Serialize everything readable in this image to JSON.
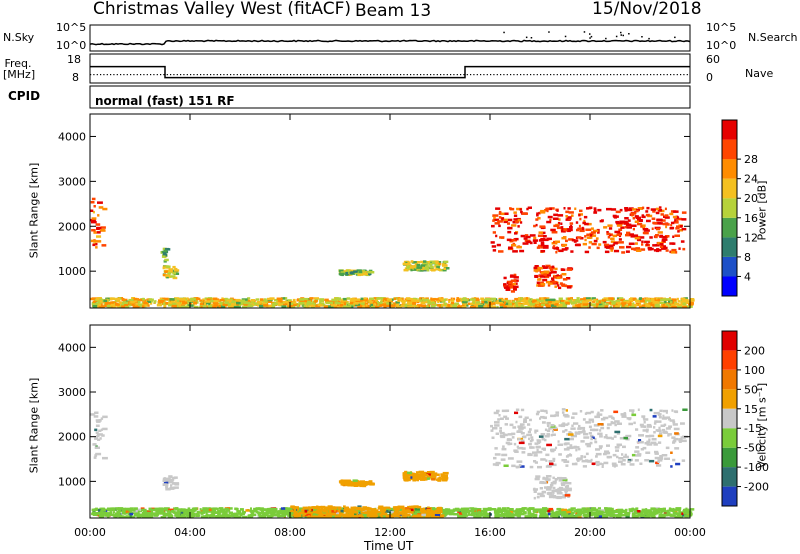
{
  "header": {
    "station": "Christmas Valley West (fitACF)",
    "beam": "Beam 13",
    "date": "15/Nov/2018"
  },
  "chart_data": [
    {
      "type": "line",
      "panel": "noise",
      "left_label": "N.Sky",
      "right_label": "N.Search",
      "left_ticks": [
        "10^5",
        "10^0"
      ],
      "right_ticks": [
        "10^5",
        "10^0"
      ],
      "xlim": [
        "00:00",
        "24:00"
      ]
    },
    {
      "type": "line",
      "panel": "freq_nave",
      "left_label": "Freq. [MHz]",
      "right_label": "Nave",
      "left_ticks": [
        "18",
        "8"
      ],
      "right_ticks": [
        "60",
        "0"
      ],
      "freq_segments": [
        {
          "start_h": 0.0,
          "end_h": 3.0,
          "freq_mhz": 15
        },
        {
          "start_h": 3.0,
          "end_h": 15.0,
          "freq_mhz": 10
        },
        {
          "start_h": 15.0,
          "end_h": 24.0,
          "freq_mhz": 15
        }
      ]
    },
    {
      "type": "table",
      "panel": "cpid",
      "left_label": "CPID",
      "program": "normal (fast) 151 RF"
    },
    {
      "type": "heatmap",
      "panel": "power",
      "ylabel": "Slant Range [km]",
      "xlim": [
        0,
        24
      ],
      "ylim": [
        180,
        4500
      ],
      "y_ticks": [
        1000,
        2000,
        3000,
        4000
      ],
      "colorbar": {
        "label": "Power [dB]",
        "ticks": [
          "4",
          "8",
          "12",
          "16",
          "20",
          "24",
          "28"
        ],
        "colors": [
          "#0000ff",
          "#1d50c8",
          "#2e7d6e",
          "#4aa24a",
          "#b6d23a",
          "#f4c020",
          "#ff8c00",
          "#ff4500",
          "#e60000"
        ]
      },
      "regions": [
        {
          "h0": 0.0,
          "h1": 0.5,
          "r0": 1500,
          "r1": 2600,
          "level": 0.8
        },
        {
          "h0": 2.9,
          "h1": 3.4,
          "r0": 800,
          "r1": 1100,
          "level": 0.55
        },
        {
          "h0": 2.8,
          "h1": 3.0,
          "r0": 1200,
          "r1": 1500,
          "level": 0.4
        },
        {
          "h0": 9.9,
          "h1": 11.2,
          "r0": 900,
          "r1": 1000,
          "level": 0.45
        },
        {
          "h0": 12.5,
          "h1": 14.2,
          "r0": 1000,
          "r1": 1200,
          "level": 0.5
        },
        {
          "h0": 16.0,
          "h1": 23.7,
          "r0": 1400,
          "r1": 2400,
          "level": 0.9
        },
        {
          "h0": 16.5,
          "h1": 17.0,
          "r0": 500,
          "r1": 900,
          "level": 0.95
        },
        {
          "h0": 17.7,
          "h1": 19.1,
          "r0": 600,
          "r1": 1100,
          "level": 0.85
        },
        {
          "h0": 0.0,
          "h1": 24.0,
          "r0": 180,
          "r1": 380,
          "level": 0.6
        }
      ]
    },
    {
      "type": "heatmap",
      "panel": "velocity",
      "ylabel": "Slant Range [km]",
      "xlabel": "Time UT",
      "xlim": [
        0,
        24
      ],
      "ylim": [
        180,
        4500
      ],
      "x_ticks": [
        "00:00",
        "04:00",
        "08:00",
        "12:00",
        "16:00",
        "20:00",
        "00:00"
      ],
      "y_ticks": [
        1000,
        2000,
        3000,
        4000
      ],
      "colorbar": {
        "label": "Velocity [m s⁻¹]",
        "ticks": [
          "200",
          "100",
          "50",
          "15",
          "-15",
          "-50",
          "-100",
          "-200"
        ],
        "colors": [
          "#1f3fbf",
          "#2e6f6f",
          "#3a9a3a",
          "#7acc3a",
          "#c8c8c8",
          "#f0a000",
          "#f07800",
          "#ff4000",
          "#e00000"
        ]
      },
      "regions": [
        {
          "h0": 0.0,
          "h1": 0.5,
          "r0": 1500,
          "r1": 2600,
          "color": "#c8c8c8"
        },
        {
          "h0": 2.9,
          "h1": 3.4,
          "r0": 800,
          "r1": 1100,
          "color": "#c8c8c8"
        },
        {
          "h0": 9.9,
          "h1": 11.2,
          "r0": 880,
          "r1": 1000,
          "color": "#f0a000"
        },
        {
          "h0": 12.5,
          "h1": 14.2,
          "r0": 1000,
          "r1": 1200,
          "color": "#f0a000"
        },
        {
          "h0": 16.0,
          "h1": 23.7,
          "r0": 1300,
          "r1": 2600,
          "color": "#c8c8c8"
        },
        {
          "h0": 17.7,
          "h1": 19.1,
          "r0": 600,
          "r1": 1100,
          "color": "#c8c8c8"
        },
        {
          "h0": 0.0,
          "h1": 24.0,
          "r0": 180,
          "r1": 380,
          "color": "#7acc3a"
        },
        {
          "h0": 8.0,
          "h1": 14.0,
          "r0": 180,
          "r1": 420,
          "color": "#f0a000"
        }
      ]
    }
  ]
}
